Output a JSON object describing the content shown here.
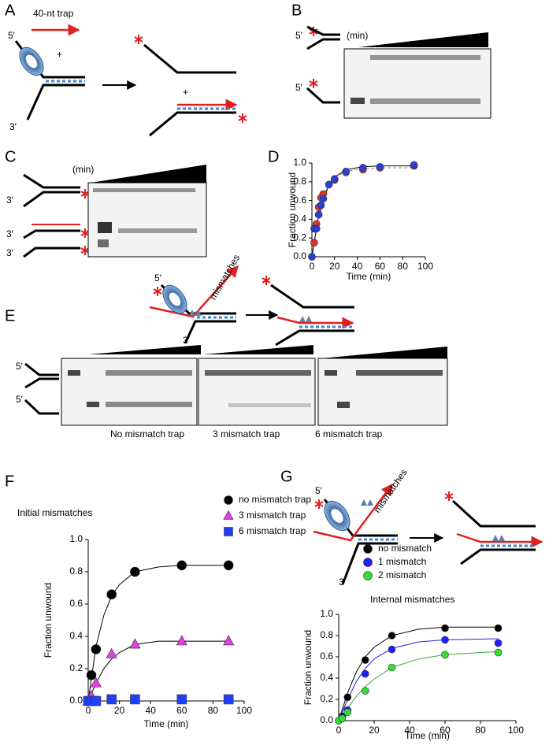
{
  "panels": {
    "A": {
      "label": "A",
      "trap": "40-nt trap",
      "ends": [
        "5′",
        "3′"
      ],
      "plus": [
        "+",
        "+"
      ]
    },
    "B": {
      "label": "B",
      "unit": "(min)",
      "ends": [
        "5′",
        "5′"
      ]
    },
    "C": {
      "label": "C",
      "unit": "(min)",
      "ends": [
        "3′",
        "3′",
        "3′"
      ]
    },
    "D": {
      "label": "D"
    },
    "mid": {
      "ends": [
        "5′",
        "3′"
      ],
      "mismatches": "mismatches"
    },
    "E": {
      "label": "E",
      "ends": [
        "5′",
        "5′"
      ],
      "gels": [
        "No mismatch trap",
        "3 mismatch trap",
        "6 mismatch trap"
      ]
    },
    "F": {
      "label": "F"
    },
    "G": {
      "label": "G",
      "ends": [
        "5′",
        "3′"
      ],
      "mismatches": "mismatches"
    }
  },
  "chart_data": [
    {
      "type": "scatter",
      "xlabel": "Time (min)",
      "ylabel": "Fraction unwound",
      "x": [
        0,
        2,
        4,
        6,
        8,
        10,
        15,
        20,
        30,
        45,
        60,
        90
      ],
      "series": [
        {
          "color": "#e03030",
          "marker": "circle",
          "values": [
            0,
            0.15,
            0.35,
            0.53,
            0.63,
            0.67,
            0.77,
            0.82,
            0.9,
            0.93,
            0.95,
            0.97
          ]
        },
        {
          "color": "#2a3fd8",
          "marker": "circle",
          "values": [
            0,
            0.3,
            0.3,
            0.45,
            0.55,
            0.62,
            0.77,
            0.83,
            0.91,
            0.95,
            0.96,
            0.98
          ]
        }
      ],
      "fits": [
        {
          "color": "#888888",
          "dash": true,
          "x": [
            0,
            5,
            10,
            15,
            20,
            30,
            45,
            60,
            90
          ],
          "values": [
            0,
            0.35,
            0.6,
            0.75,
            0.84,
            0.91,
            0.94,
            0.95,
            0.95
          ]
        },
        {
          "color": "#000000",
          "dash": false,
          "x": [
            0,
            5,
            10,
            15,
            20,
            30,
            45,
            60,
            90
          ],
          "values": [
            0,
            0.38,
            0.62,
            0.77,
            0.85,
            0.93,
            0.96,
            0.97,
            0.97
          ]
        }
      ],
      "xlim": [
        0,
        100
      ],
      "xticks": [
        0,
        20,
        40,
        60,
        80,
        100
      ],
      "ylim": [
        0,
        1
      ],
      "yticks": [
        {
          "value": 0,
          "label": "0.0"
        },
        {
          "value": 0.2,
          "label": "0.2"
        },
        {
          "value": 0.4,
          "label": "0.4"
        },
        {
          "value": 0.6,
          "label": "0.6"
        },
        {
          "value": 0.8,
          "label": "0.8"
        },
        {
          "value": 1,
          "label": "1.0"
        }
      ]
    },
    {
      "type": "scatter",
      "title": "Initial mismatches",
      "xlabel": "Time (min)",
      "ylabel": "Fraction unwound",
      "x": [
        0,
        2,
        5,
        15,
        30,
        60,
        90
      ],
      "series": [
        {
          "name": "no mismatch trap",
          "color": "#000000",
          "marker": "circle",
          "values": [
            0,
            0.16,
            0.32,
            0.66,
            0.8,
            0.84,
            0.84
          ]
        },
        {
          "name": "3 mismatch trap",
          "color": "#e040e0",
          "marker": "triangle",
          "values": [
            0,
            0.03,
            0.11,
            0.29,
            0.35,
            0.37,
            0.37
          ]
        },
        {
          "name": "6 mismatch trap",
          "color": "#1f3fff",
          "marker": "square",
          "values": [
            0,
            0,
            0,
            0.01,
            0.01,
            0.01,
            0.01
          ]
        }
      ],
      "fits": [
        {
          "color": "#000000",
          "dash": false,
          "x": [
            0,
            5,
            10,
            15,
            20,
            30,
            45,
            60,
            90
          ],
          "values": [
            0,
            0.34,
            0.53,
            0.65,
            0.72,
            0.8,
            0.83,
            0.84,
            0.84
          ]
        },
        {
          "color": "#000000",
          "dash": false,
          "x": [
            0,
            5,
            10,
            15,
            20,
            30,
            45,
            60,
            90
          ],
          "values": [
            0,
            0.11,
            0.2,
            0.26,
            0.3,
            0.35,
            0.37,
            0.37,
            0.37
          ]
        }
      ],
      "xlim": [
        0,
        100
      ],
      "xticks": [
        0,
        20,
        40,
        60,
        80,
        100
      ],
      "ylim": [
        0,
        1
      ],
      "yticks": [
        {
          "value": 0,
          "label": "0.0"
        },
        {
          "value": 0.2,
          "label": "0.2"
        },
        {
          "value": 0.4,
          "label": "0.4"
        },
        {
          "value": 0.6,
          "label": "0.6"
        },
        {
          "value": 0.8,
          "label": "0.8"
        },
        {
          "value": 1,
          "label": "1.0"
        }
      ]
    },
    {
      "type": "scatter",
      "title": "Internal mismatches",
      "xlabel": "Time (min)",
      "ylabel": "Fraction unwound",
      "x": [
        0,
        2,
        5,
        15,
        30,
        60,
        90
      ],
      "series": [
        {
          "name": "no mismatch",
          "color": "#000000",
          "marker": "circle",
          "values": [
            0,
            0.04,
            0.22,
            0.57,
            0.8,
            0.87,
            0.87
          ]
        },
        {
          "name": "1 mismatch",
          "color": "#2020ff",
          "marker": "circle",
          "values": [
            0,
            0.03,
            0.1,
            0.44,
            0.67,
            0.76,
            0.73
          ]
        },
        {
          "name": "2 mismatch",
          "color": "#33dd33",
          "marker": "circle",
          "values": [
            0,
            0.02,
            0.08,
            0.28,
            0.5,
            0.62,
            0.64
          ]
        }
      ],
      "fits": [
        {
          "color": "#000000",
          "dash": false,
          "x": [
            0,
            5,
            10,
            15,
            20,
            30,
            45,
            60,
            90
          ],
          "values": [
            0,
            0.26,
            0.46,
            0.6,
            0.69,
            0.8,
            0.86,
            0.88,
            0.88
          ]
        },
        {
          "color": "#2020ff",
          "dash": false,
          "x": [
            0,
            5,
            10,
            15,
            20,
            30,
            45,
            60,
            90
          ],
          "values": [
            0,
            0.2,
            0.37,
            0.49,
            0.58,
            0.68,
            0.74,
            0.76,
            0.77
          ]
        },
        {
          "color": "#33aa33",
          "dash": false,
          "x": [
            0,
            5,
            10,
            15,
            20,
            30,
            45,
            60,
            90
          ],
          "values": [
            0,
            0.12,
            0.23,
            0.32,
            0.39,
            0.5,
            0.58,
            0.62,
            0.65
          ]
        }
      ],
      "xlim": [
        0,
        100
      ],
      "xticks": [
        0,
        20,
        40,
        60,
        80,
        100
      ],
      "ylim": [
        0,
        1
      ],
      "yticks": [
        {
          "value": 0,
          "label": "0.0"
        },
        {
          "value": 0.2,
          "label": "0.2"
        },
        {
          "value": 0.4,
          "label": "0.4"
        },
        {
          "value": 0.6,
          "label": "0.6"
        },
        {
          "value": 0.8,
          "label": "0.8"
        },
        {
          "value": 1,
          "label": "1.0"
        }
      ]
    }
  ]
}
